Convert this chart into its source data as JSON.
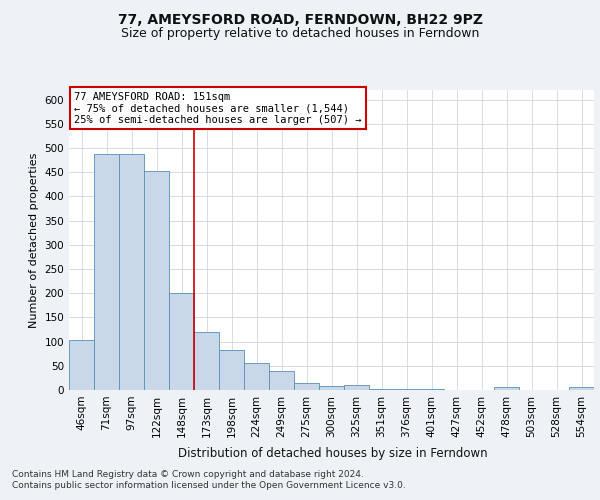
{
  "title1": "77, AMEYSFORD ROAD, FERNDOWN, BH22 9PZ",
  "title2": "Size of property relative to detached houses in Ferndown",
  "xlabel": "Distribution of detached houses by size in Ferndown",
  "ylabel": "Number of detached properties",
  "footer1": "Contains HM Land Registry data © Crown copyright and database right 2024.",
  "footer2": "Contains public sector information licensed under the Open Government Licence v3.0.",
  "categories": [
    "46sqm",
    "71sqm",
    "97sqm",
    "122sqm",
    "148sqm",
    "173sqm",
    "198sqm",
    "224sqm",
    "249sqm",
    "275sqm",
    "300sqm",
    "325sqm",
    "351sqm",
    "376sqm",
    "401sqm",
    "427sqm",
    "452sqm",
    "478sqm",
    "503sqm",
    "528sqm",
    "554sqm"
  ],
  "values": [
    104,
    487,
    487,
    453,
    200,
    120,
    82,
    55,
    40,
    14,
    8,
    10,
    2,
    2,
    2,
    0,
    0,
    6,
    0,
    0,
    6
  ],
  "bar_color": "#c8d8e8",
  "bar_edge_color": "#5b8db8",
  "highlight_index": 4,
  "highlight_line_color": "#cc0000",
  "annotation_line1": "77 AMEYSFORD ROAD: 151sqm",
  "annotation_line2": "← 75% of detached houses are smaller (1,544)",
  "annotation_line3": "25% of semi-detached houses are larger (507) →",
  "annotation_box_color": "#ffffff",
  "annotation_box_edge_color": "#cc0000",
  "ylim": [
    0,
    620
  ],
  "yticks": [
    0,
    50,
    100,
    150,
    200,
    250,
    300,
    350,
    400,
    450,
    500,
    550,
    600
  ],
  "background_color": "#eef2f7",
  "plot_background": "#ffffff",
  "grid_color": "#c5cfe0",
  "title1_fontsize": 10,
  "title2_fontsize": 9,
  "xlabel_fontsize": 8.5,
  "ylabel_fontsize": 8,
  "tick_fontsize": 7.5,
  "annotation_fontsize": 7.5,
  "footer_fontsize": 6.5
}
